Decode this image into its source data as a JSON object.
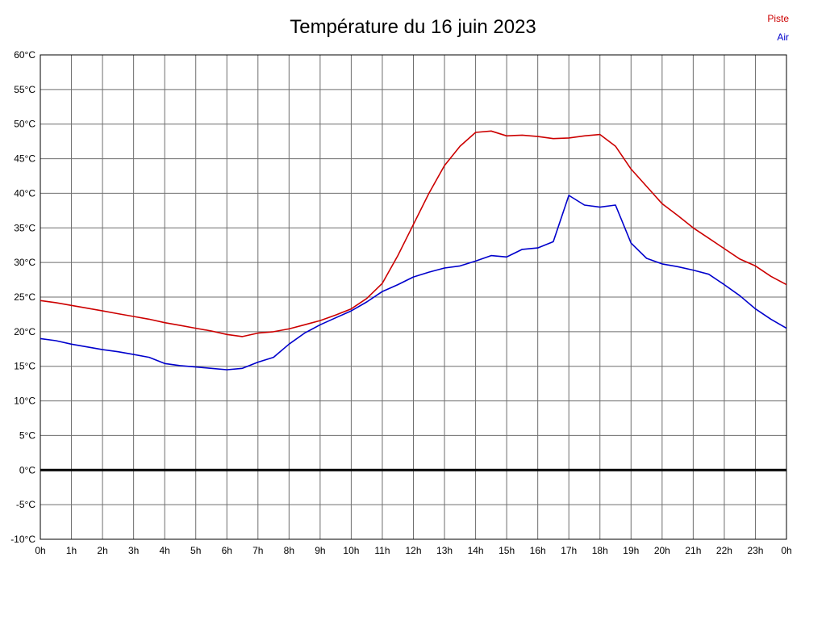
{
  "title": "Température du 16 juin 2023",
  "legend": [
    {
      "label": "Piste",
      "color": "#cc0000"
    },
    {
      "label": "Air",
      "color": "#0000cc"
    }
  ],
  "chart_data": {
    "type": "line",
    "title": "Température du 16 juin 2023",
    "xlabel": "",
    "ylabel": "",
    "xlim": [
      0,
      24
    ],
    "ylim": [
      -10,
      60
    ],
    "y_tick_step": 5,
    "grid": true,
    "grid_color": "#6e6e6e",
    "border_color": "#000000",
    "zero_line": true,
    "zero_line_color": "#000000",
    "legend_position": "top-right",
    "x_tick_labels": [
      "0h",
      "1h",
      "2h",
      "3h",
      "4h",
      "5h",
      "6h",
      "7h",
      "8h",
      "9h",
      "10h",
      "11h",
      "12h",
      "13h",
      "14h",
      "15h",
      "16h",
      "17h",
      "18h",
      "19h",
      "20h",
      "21h",
      "22h",
      "23h",
      "0h"
    ],
    "y_tick_labels": [
      "60°C",
      "55°C",
      "50°C",
      "45°C",
      "40°C",
      "35°C",
      "30°C",
      "25°C",
      "20°C",
      "15°C",
      "10°C",
      "5°C",
      "0°C",
      "-5°C",
      "-10°C"
    ],
    "x": [
      0,
      0.5,
      1,
      1.5,
      2,
      2.5,
      3,
      3.5,
      4,
      4.5,
      5,
      5.5,
      6,
      6.5,
      7,
      7.5,
      8,
      8.5,
      9,
      9.5,
      10,
      10.5,
      11,
      11.5,
      12,
      12.5,
      13,
      13.5,
      14,
      14.5,
      15,
      15.5,
      16,
      16.5,
      17,
      17.5,
      18,
      18.5,
      19,
      19.5,
      20,
      20.5,
      21,
      21.5,
      22,
      22.5,
      23,
      23.5,
      24
    ],
    "series": [
      {
        "name": "Piste",
        "color": "#cc0000",
        "values": [
          24.5,
          24.2,
          23.8,
          23.4,
          23.0,
          22.6,
          22.2,
          21.8,
          21.3,
          20.9,
          20.5,
          20.1,
          19.6,
          19.3,
          19.8,
          20.0,
          20.4,
          21.0,
          21.6,
          22.4,
          23.3,
          24.8,
          27.0,
          31.0,
          35.5,
          40.0,
          44.0,
          46.8,
          48.8,
          49.0,
          48.3,
          48.4,
          48.2,
          47.9,
          48.0,
          48.3,
          48.5,
          46.8,
          43.5,
          41.0,
          38.5,
          36.8,
          35.0,
          33.5,
          32.0,
          30.5,
          29.5,
          28.0,
          26.8
        ]
      },
      {
        "name": "Air",
        "color": "#0000cc",
        "values": [
          19.0,
          18.7,
          18.2,
          17.8,
          17.4,
          17.1,
          16.7,
          16.3,
          15.4,
          15.1,
          14.9,
          14.7,
          14.5,
          14.7,
          15.6,
          16.3,
          18.2,
          19.8,
          21.0,
          22.0,
          23.0,
          24.3,
          25.8,
          26.8,
          27.9,
          28.6,
          29.2,
          29.5,
          30.2,
          31.0,
          30.8,
          31.9,
          32.1,
          33.0,
          39.7,
          38.3,
          38.0,
          38.3,
          32.8,
          30.6,
          29.8,
          29.4,
          28.9,
          28.3,
          26.8,
          25.2,
          23.3,
          21.8,
          20.5
        ]
      }
    ]
  }
}
